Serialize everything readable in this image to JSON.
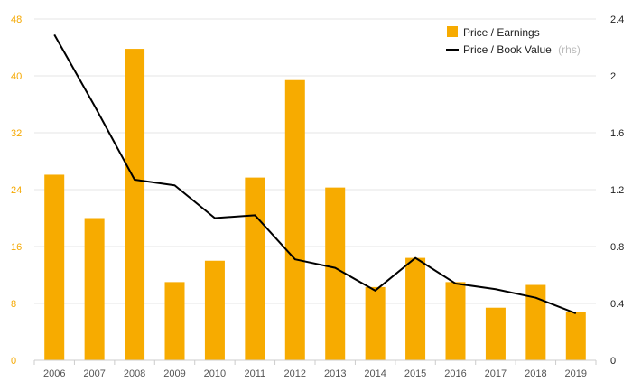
{
  "chart_data": {
    "type": "bar",
    "categories": [
      "2006",
      "2007",
      "2008",
      "2009",
      "2010",
      "2011",
      "2012",
      "2013",
      "2014",
      "2015",
      "2016",
      "2017",
      "2018",
      "2019"
    ],
    "series": [
      {
        "name": "Price / Earnings",
        "type": "bar",
        "axis": "left",
        "color": "#f7ab00",
        "values": [
          26.1,
          20.0,
          43.8,
          11.0,
          14.0,
          25.7,
          39.4,
          24.3,
          10.3,
          14.4,
          11.0,
          7.4,
          10.6,
          6.8
        ]
      },
      {
        "name": "Price / Book Value",
        "name_note": "(rhs)",
        "type": "line",
        "axis": "right",
        "color": "#000000",
        "values": [
          2.29,
          1.79,
          1.27,
          1.23,
          1.0,
          1.02,
          0.71,
          0.65,
          0.49,
          0.72,
          0.54,
          0.5,
          0.44,
          0.33
        ]
      }
    ],
    "y_left": {
      "min": 0,
      "max": 48,
      "ticks": [
        "0",
        "8",
        "16",
        "24",
        "32",
        "40",
        "48"
      ],
      "color": "#f5a800"
    },
    "y_right": {
      "min": 0,
      "max": 2.4,
      "ticks": [
        "0",
        "0.4",
        "0.8",
        "1.2",
        "1.6",
        "2",
        "2.4"
      ],
      "color": "#222222"
    },
    "grid": true,
    "legend_position": "top-right"
  }
}
